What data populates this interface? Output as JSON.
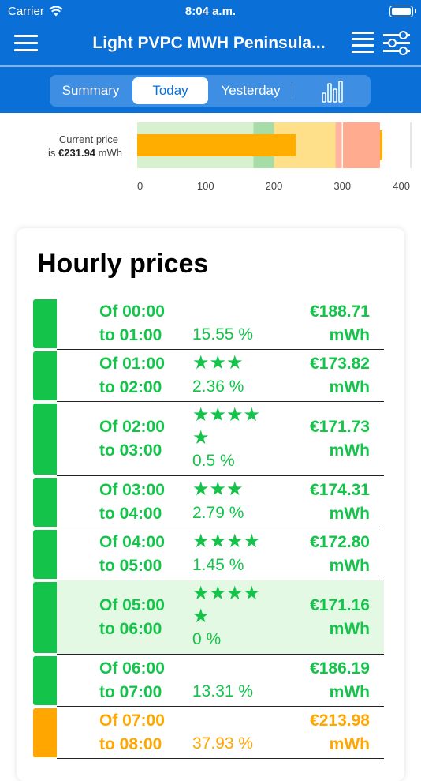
{
  "status_bar": {
    "carrier": "Carrier",
    "time": "8:04 a.m."
  },
  "navbar": {
    "title": "Light PVPC MWH Peninsula..."
  },
  "tabs": [
    {
      "label": "Summary"
    },
    {
      "label": "Today",
      "selected": true
    },
    {
      "label": "Yesterday"
    },
    {
      "label": "",
      "icon": "bar-chart-icon"
    }
  ],
  "current_price": {
    "label_line1": "Current price",
    "label_prefix": "is",
    "value": "€231.94",
    "unit": "mWh",
    "numeric_value": 231.94,
    "axis_ticks": [
      "0",
      "100",
      "200",
      "300",
      "400"
    ],
    "axis_range": [
      0,
      400
    ],
    "bands": [
      {
        "from": 0,
        "to": 170,
        "color": "#d9f0cf"
      },
      {
        "from": 170,
        "to": 200,
        "color": "#a7dca7"
      },
      {
        "from": 200,
        "to": 290,
        "color": "#ffe08a"
      },
      {
        "from": 290,
        "to": 300,
        "color": "#ffb3a0"
      },
      {
        "from": 300,
        "to": 355,
        "color": "#ffab90"
      }
    ],
    "marker_value": 355,
    "bar_color": "#ffae00"
  },
  "hourly": {
    "title": "Hourly prices",
    "rows": [
      {
        "from": "Of 00:00",
        "to": "to 01:00",
        "stars": "",
        "pct": "15.55 %",
        "price": "€188.71",
        "unit": "mWh",
        "color": "#14c44a",
        "highlight": false
      },
      {
        "from": "Of 01:00",
        "to": "to 02:00",
        "stars": "★★★",
        "pct": "2.36 %",
        "price": "€173.82",
        "unit": "mWh",
        "color": "#14c44a",
        "highlight": false
      },
      {
        "from": "Of 02:00",
        "to": "to 03:00",
        "stars": "★★★★★",
        "pct": "0.5 %",
        "price": "€171.73",
        "unit": "mWh",
        "color": "#14c44a",
        "highlight": false
      },
      {
        "from": "Of 03:00",
        "to": "to 04:00",
        "stars": "★★★",
        "pct": "2.79 %",
        "price": "€174.31",
        "unit": "mWh",
        "color": "#14c44a",
        "highlight": false
      },
      {
        "from": "Of 04:00",
        "to": "to 05:00",
        "stars": "★★★★",
        "pct": "1.45 %",
        "price": "€172.80",
        "unit": "mWh",
        "color": "#14c44a",
        "highlight": false
      },
      {
        "from": "Of 05:00",
        "to": "to 06:00",
        "stars": "★★★★★",
        "pct": "0 %",
        "price": "€171.16",
        "unit": "mWh",
        "color": "#14c44a",
        "highlight": true
      },
      {
        "from": "Of 06:00",
        "to": "to 07:00",
        "stars": "",
        "pct": "13.31 %",
        "price": "€186.19",
        "unit": "mWh",
        "color": "#14c44a",
        "highlight": false
      },
      {
        "from": "Of 07:00",
        "to": "to 08:00",
        "stars": "",
        "pct": "37.93 %",
        "price": "€213.98",
        "unit": "mWh",
        "color": "#ffa600",
        "highlight": false
      }
    ]
  },
  "colors": {
    "primary": "#0a6fd6",
    "green": "#14c44a",
    "orange": "#ffa600",
    "highlight_bg": "#e4f9e4"
  }
}
